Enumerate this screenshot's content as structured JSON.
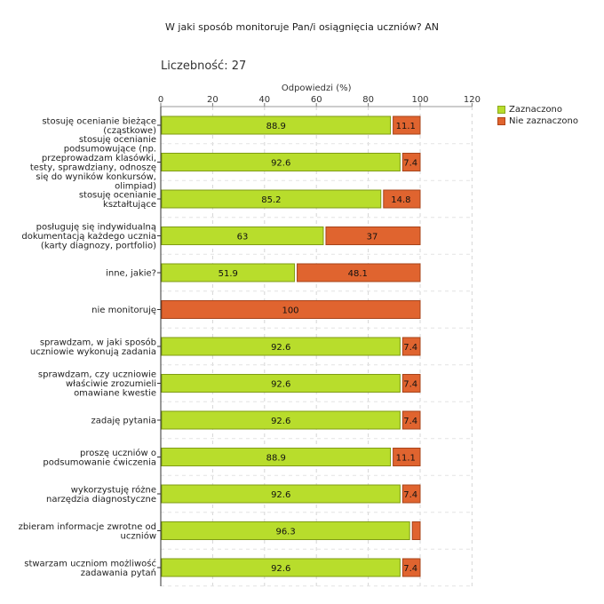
{
  "chart_data": {
    "type": "bar",
    "orientation": "horizontal",
    "stacked": true,
    "title": "W jaki sposób monitoruje Pan/i osiągnięcia uczniów?  AN",
    "count_label": "Liczebność: 27",
    "xlabel": "Odpowiedzi (%)",
    "xlim": [
      0,
      120
    ],
    "xticks": [
      "0",
      "20",
      "40",
      "60",
      "80",
      "100",
      "120"
    ],
    "grid": true,
    "legend_position": "top-right",
    "categories": [
      [
        "stosuję ocenianie bieżące",
        "(cząstkowe)"
      ],
      [
        "stosuję ocenianie",
        "podsumowujące (np.",
        "przeprowadzam klasówki,",
        "testy, sprawdziany, odnoszę",
        "się do wyników konkursów,",
        "olimpiad)"
      ],
      [
        "stosuję ocenianie",
        "kształtujące"
      ],
      [
        "posługuję się indywidualną",
        "dokumentacją każdego ucznia",
        "(karty diagnozy, portfolio)"
      ],
      [
        "inne, jakie?"
      ],
      [
        "nie monitoruję"
      ],
      [
        "sprawdzam, w jaki sposób",
        "uczniowie wykonują zadania"
      ],
      [
        "sprawdzam, czy uczniowie",
        "właściwie zrozumieli",
        "omawiane kwestie"
      ],
      [
        "zadaję pytania"
      ],
      [
        "proszę uczniów o",
        "podsumowanie ćwiczenia"
      ],
      [
        "wykorzystuję różne",
        "narzędzia diagnostyczne"
      ],
      [
        "zbieram informacje zwrotne od",
        "uczniów"
      ],
      [
        "stwarzam uczniom możliwość",
        "zadawania pytań"
      ]
    ],
    "series": [
      {
        "name": "Zaznaczono",
        "color": "#b8dd2c",
        "values": [
          88.9,
          92.6,
          85.2,
          63,
          51.9,
          0,
          92.6,
          92.6,
          92.6,
          88.9,
          92.6,
          96.3,
          92.6
        ],
        "labels": [
          "88.9",
          "92.6",
          "85.2",
          "63",
          "51.9",
          "",
          "92.6",
          "92.6",
          "92.6",
          "88.9",
          "92.6",
          "96.3",
          "92.6"
        ]
      },
      {
        "name": "Nie zaznaczono",
        "color": "#e0642f",
        "values": [
          11.1,
          7.4,
          14.8,
          37,
          48.1,
          100,
          7.4,
          7.4,
          7.4,
          11.1,
          7.4,
          3.7,
          7.4
        ],
        "labels": [
          "11.1",
          "7.4",
          "14.8",
          "37",
          "48.1",
          "100",
          "7.4",
          "7.4",
          "7.4",
          "11.1",
          "7.4",
          "",
          "7.4"
        ]
      }
    ]
  }
}
